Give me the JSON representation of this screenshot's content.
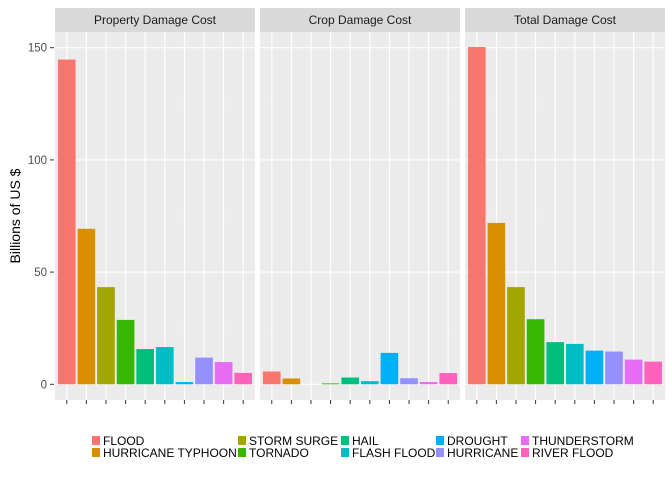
{
  "chart_data": {
    "type": "bar",
    "ylabel": "Billions of US $",
    "xlabel": "",
    "ylim": [
      -7,
      157
    ],
    "yticks": [
      0,
      50,
      100,
      150
    ],
    "grid": true,
    "legend_position": "bottom",
    "categories": [
      "FLOOD",
      "HURRICANE TYPHOON",
      "STORM SURGE",
      "TORNADO",
      "HAIL",
      "FLASH FLOOD",
      "DROUGHT",
      "HURRICANE",
      "THUNDERSTORM",
      "RIVER FLOOD"
    ],
    "colors": {
      "FLOOD": "#F8766D",
      "HURRICANE TYPHOON": "#D89000",
      "STORM SURGE": "#A3A500",
      "TORNADO": "#39B600",
      "HAIL": "#00BF7D",
      "FLASH FLOOD": "#00BFC4",
      "DROUGHT": "#00B0F6",
      "HURRICANE": "#9590FF",
      "THUNDERSTORM": "#E76BF3",
      "RIVER FLOOD": "#FF62BC"
    },
    "panels": [
      {
        "title": "Property Damage Cost",
        "values": [
          144.7,
          69.3,
          43.3,
          28.7,
          15.7,
          16.6,
          1.0,
          11.9,
          9.9,
          5.1
        ]
      },
      {
        "title": "Crop Damage Cost",
        "values": [
          5.7,
          2.6,
          0.0,
          0.4,
          3.0,
          1.4,
          14.0,
          2.7,
          1.0,
          5.0
        ]
      },
      {
        "title": "Total Damage Cost",
        "values": [
          150.3,
          71.9,
          43.3,
          29.0,
          18.8,
          18.0,
          15.0,
          14.6,
          11.0,
          10.1
        ]
      }
    ],
    "legend": {
      "entries": [
        {
          "label": "FLOOD",
          "color": "#F8766D"
        },
        {
          "label": "HURRICANE TYPHOON",
          "color": "#D89000"
        },
        {
          "label": "STORM SURGE",
          "color": "#A3A500"
        },
        {
          "label": "TORNADO",
          "color": "#39B600"
        },
        {
          "label": "HAIL",
          "color": "#00BF7D"
        },
        {
          "label": "FLASH FLOOD",
          "color": "#00BFC4"
        },
        {
          "label": "DROUGHT",
          "color": "#00B0F6"
        },
        {
          "label": "HURRICANE",
          "color": "#9590FF"
        },
        {
          "label": "THUNDERSTORM",
          "color": "#E76BF3"
        },
        {
          "label": "RIVER FLOOD",
          "color": "#FF62BC"
        }
      ]
    }
  }
}
